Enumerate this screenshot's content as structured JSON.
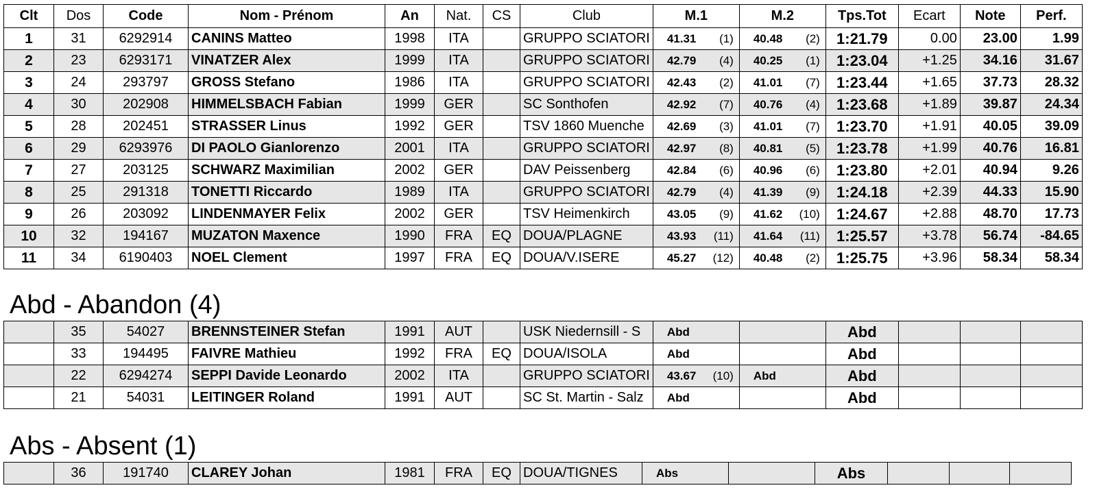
{
  "columns": [
    "Clt",
    "Dos",
    "Code",
    "Nom - Prénom",
    "An",
    "Nat.",
    "CS",
    "Club",
    "M.1",
    "M.2",
    "Tps.Tot",
    "Ecart",
    "Note",
    "Perf."
  ],
  "results": [
    {
      "clt": "1",
      "dos": "31",
      "code": "6292914",
      "name": "CANINS Matteo",
      "an": "1998",
      "nat": "ITA",
      "cs": "",
      "club": "GRUPPO SCIATORI",
      "m1": "41.31",
      "m1p": "(1)",
      "m2": "40.48",
      "m2p": "(2)",
      "tot": "1:21.79",
      "ecart": "0.00",
      "note": "23.00",
      "perf": "1.99"
    },
    {
      "clt": "2",
      "dos": "23",
      "code": "6293171",
      "name": "VINATZER Alex",
      "an": "1999",
      "nat": "ITA",
      "cs": "",
      "club": "GRUPPO SCIATORI",
      "m1": "42.79",
      "m1p": "(4)",
      "m2": "40.25",
      "m2p": "(1)",
      "tot": "1:23.04",
      "ecart": "+1.25",
      "note": "34.16",
      "perf": "31.67"
    },
    {
      "clt": "3",
      "dos": "24",
      "code": "293797",
      "name": "GROSS Stefano",
      "an": "1986",
      "nat": "ITA",
      "cs": "",
      "club": "GRUPPO SCIATORI",
      "m1": "42.43",
      "m1p": "(2)",
      "m2": "41.01",
      "m2p": "(7)",
      "tot": "1:23.44",
      "ecart": "+1.65",
      "note": "37.73",
      "perf": "28.32"
    },
    {
      "clt": "4",
      "dos": "30",
      "code": "202908",
      "name": "HIMMELSBACH Fabian",
      "an": "1999",
      "nat": "GER",
      "cs": "",
      "club": "SC Sonthofen",
      "m1": "42.92",
      "m1p": "(7)",
      "m2": "40.76",
      "m2p": "(4)",
      "tot": "1:23.68",
      "ecart": "+1.89",
      "note": "39.87",
      "perf": "24.34"
    },
    {
      "clt": "5",
      "dos": "28",
      "code": "202451",
      "name": "STRASSER Linus",
      "an": "1992",
      "nat": "GER",
      "cs": "",
      "club": "TSV 1860 Muenche",
      "m1": "42.69",
      "m1p": "(3)",
      "m2": "41.01",
      "m2p": "(7)",
      "tot": "1:23.70",
      "ecart": "+1.91",
      "note": "40.05",
      "perf": "39.09"
    },
    {
      "clt": "6",
      "dos": "29",
      "code": "6293976",
      "name": "DI PAOLO Gianlorenzo",
      "an": "2001",
      "nat": "ITA",
      "cs": "",
      "club": "GRUPPO SCIATORI",
      "m1": "42.97",
      "m1p": "(8)",
      "m2": "40.81",
      "m2p": "(5)",
      "tot": "1:23.78",
      "ecart": "+1.99",
      "note": "40.76",
      "perf": "16.81"
    },
    {
      "clt": "7",
      "dos": "27",
      "code": "203125",
      "name": "SCHWARZ Maximilian",
      "an": "2002",
      "nat": "GER",
      "cs": "",
      "club": "DAV Peissenberg",
      "m1": "42.84",
      "m1p": "(6)",
      "m2": "40.96",
      "m2p": "(6)",
      "tot": "1:23.80",
      "ecart": "+2.01",
      "note": "40.94",
      "perf": "9.26"
    },
    {
      "clt": "8",
      "dos": "25",
      "code": "291318",
      "name": "TONETTI Riccardo",
      "an": "1989",
      "nat": "ITA",
      "cs": "",
      "club": "GRUPPO SCIATORI",
      "m1": "42.79",
      "m1p": "(4)",
      "m2": "41.39",
      "m2p": "(9)",
      "tot": "1:24.18",
      "ecart": "+2.39",
      "note": "44.33",
      "perf": "15.90"
    },
    {
      "clt": "9",
      "dos": "26",
      "code": "203092",
      "name": "LINDENMAYER Felix",
      "an": "2002",
      "nat": "GER",
      "cs": "",
      "club": "TSV Heimenkirch",
      "m1": "43.05",
      "m1p": "(9)",
      "m2": "41.62",
      "m2p": "(10)",
      "tot": "1:24.67",
      "ecart": "+2.88",
      "note": "48.70",
      "perf": "17.73"
    },
    {
      "clt": "10",
      "dos": "32",
      "code": "194167",
      "name": "MUZATON Maxence",
      "an": "1990",
      "nat": "FRA",
      "cs": "EQ",
      "club": "DOUA/PLAGNE",
      "m1": "43.93",
      "m1p": "(11)",
      "m2": "41.64",
      "m2p": "(11)",
      "tot": "1:25.57",
      "ecart": "+3.78",
      "note": "56.74",
      "perf": "-84.65"
    },
    {
      "clt": "11",
      "dos": "34",
      "code": "6190403",
      "name": "NOEL Clement",
      "an": "1997",
      "nat": "FRA",
      "cs": "EQ",
      "club": "DOUA/V.ISERE",
      "m1": "45.27",
      "m1p": "(12)",
      "m2": "40.48",
      "m2p": "(2)",
      "tot": "1:25.75",
      "ecart": "+3.96",
      "note": "58.34",
      "perf": "58.34"
    }
  ],
  "abandon_title": "Abd - Abandon (4)",
  "abandon": [
    {
      "clt": "",
      "dos": "35",
      "code": "54027",
      "name": "BRENNSTEINER Stefan",
      "an": "1991",
      "nat": "AUT",
      "cs": "",
      "club": "USK Niedernsill - S",
      "m1": "Abd",
      "m1p": "",
      "m2": "",
      "m2p": "",
      "tot": "Abd",
      "ecart": "",
      "note": "",
      "perf": ""
    },
    {
      "clt": "",
      "dos": "33",
      "code": "194495",
      "name": "FAIVRE Mathieu",
      "an": "1992",
      "nat": "FRA",
      "cs": "EQ",
      "club": "DOUA/ISOLA",
      "m1": "Abd",
      "m1p": "",
      "m2": "",
      "m2p": "",
      "tot": "Abd",
      "ecart": "",
      "note": "",
      "perf": ""
    },
    {
      "clt": "",
      "dos": "22",
      "code": "6294274",
      "name": "SEPPI Davide Leonardo",
      "an": "2002",
      "nat": "ITA",
      "cs": "",
      "club": "GRUPPO SCIATORI",
      "m1": "43.67",
      "m1p": "(10)",
      "m2": "Abd",
      "m2p": "",
      "tot": "Abd",
      "ecart": "",
      "note": "",
      "perf": ""
    },
    {
      "clt": "",
      "dos": "21",
      "code": "54031",
      "name": "LEITINGER Roland",
      "an": "1991",
      "nat": "AUT",
      "cs": "",
      "club": "SC St. Martin - Salz",
      "m1": "Abd",
      "m1p": "",
      "m2": "",
      "m2p": "",
      "tot": "Abd",
      "ecart": "",
      "note": "",
      "perf": ""
    }
  ],
  "absent_title": "Abs - Absent (1)",
  "absent": [
    {
      "clt": "",
      "dos": "36",
      "code": "191740",
      "name": "CLAREY Johan",
      "an": "1981",
      "nat": "FRA",
      "cs": "EQ",
      "club": "DOUA/TIGNES",
      "m1": "Abs",
      "m1p": "",
      "m2": "",
      "m2p": "",
      "tot": "Abs",
      "ecart": "",
      "note": "",
      "perf": ""
    }
  ]
}
